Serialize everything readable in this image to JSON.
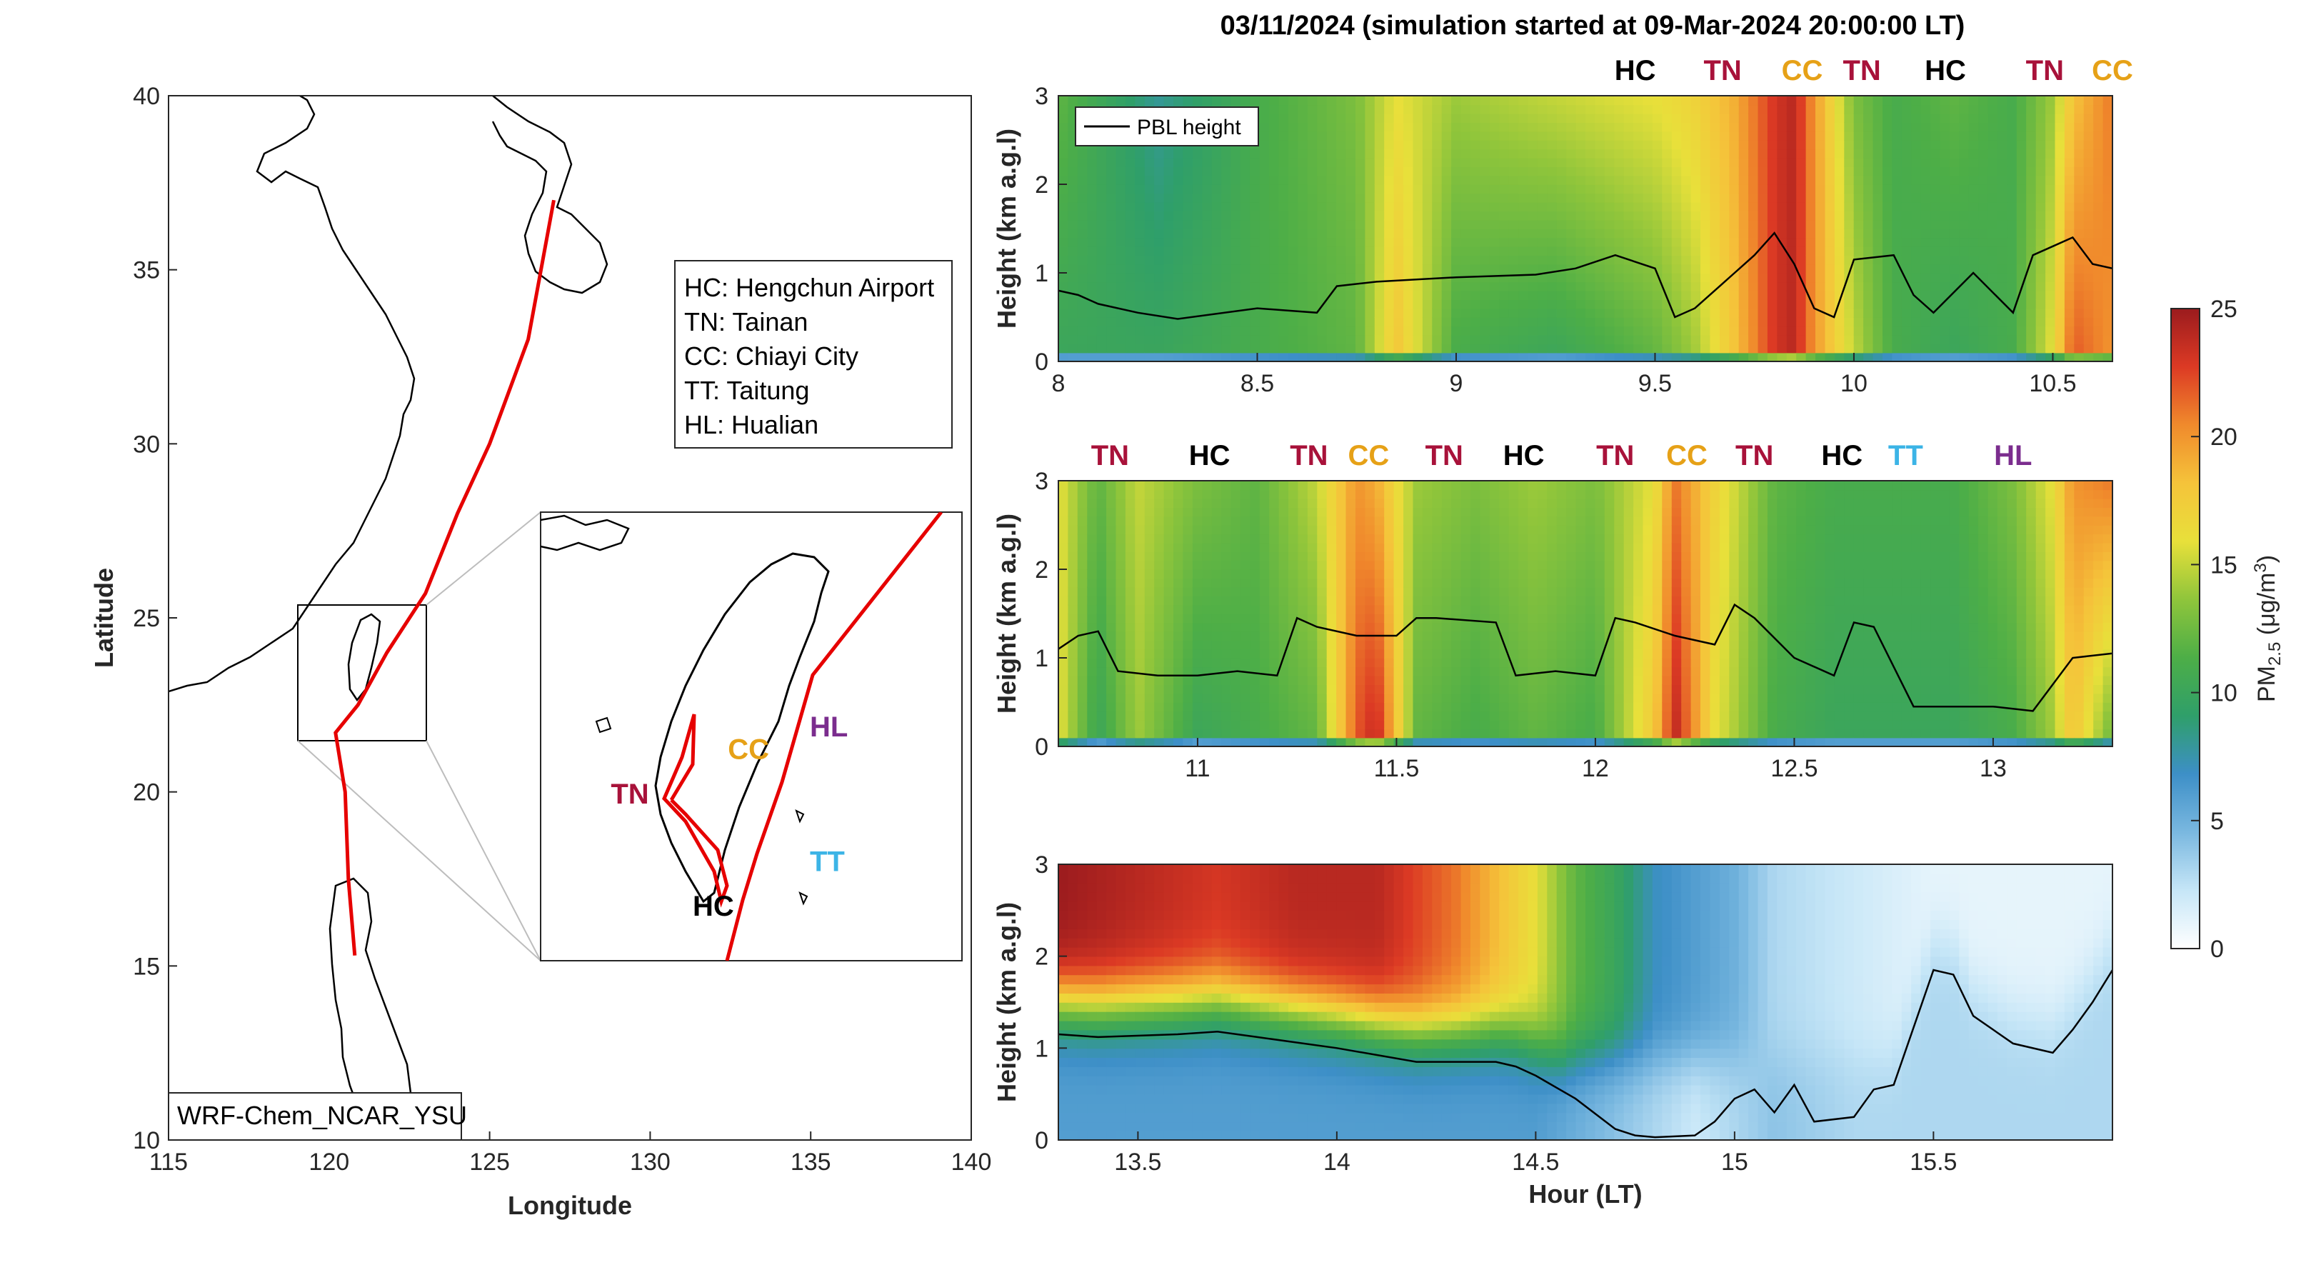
{
  "figure": {
    "title": "03/11/2024 (simulation started at 09-Mar-2024 20:00:00 LT)",
    "model_label": "WRF-Chem_NCAR_YSU"
  },
  "site_colors": {
    "HC": "#000000",
    "TN": "#a8123a",
    "CC": "#e6a117",
    "TT": "#3cb4e6",
    "HL": "#7b2d8e"
  },
  "map": {
    "xlabel": "Longitude",
    "ylabel": "Latitude",
    "xlim": [
      115,
      140
    ],
    "ylim": [
      10,
      40
    ],
    "xticks": [
      "115",
      "120",
      "125",
      "130",
      "135",
      "140"
    ],
    "yticks": [
      "10",
      "15",
      "20",
      "25",
      "30",
      "35",
      "40"
    ],
    "legend": [
      "HC: Hengchun Airport",
      "TN: Tainan",
      "CC: Chiayi City",
      "TT: Taitung",
      "HL: Hualian"
    ],
    "inset_site_labels": [
      {
        "code": "CC",
        "lon": 121.0,
        "lat": 23.3
      },
      {
        "code": "HL",
        "lon": 121.7,
        "lat": 23.5
      },
      {
        "code": "TN",
        "lon": 120.0,
        "lat": 22.9
      },
      {
        "code": "TT",
        "lon": 121.7,
        "lat": 22.3
      },
      {
        "code": "HC",
        "lon": 120.7,
        "lat": 21.9
      }
    ],
    "flight_track": [
      [
        127.0,
        37.0
      ],
      [
        126.2,
        33.0
      ],
      [
        125.0,
        30.0
      ],
      [
        124.0,
        28.0
      ],
      [
        123.0,
        25.7
      ],
      [
        121.8,
        24.0
      ],
      [
        120.9,
        22.5
      ],
      [
        120.2,
        21.7
      ],
      [
        120.5,
        20.0
      ],
      [
        120.6,
        17.5
      ],
      [
        120.8,
        15.3
      ]
    ]
  },
  "colorbar": {
    "label": "PM2.5 (μg/m3)",
    "ticks": [
      "0",
      "5",
      "10",
      "15",
      "20",
      "25"
    ],
    "range": [
      0,
      25
    ],
    "colors": [
      "#ffffff",
      "#c6e6f7",
      "#7ab8e0",
      "#3d8fc7",
      "#2f9f6a",
      "#4dae47",
      "#8fc53b",
      "#e8e03a",
      "#f5c33a",
      "#f08a2c",
      "#dc3a24",
      "#9b1b1e"
    ]
  },
  "chart_data": [
    {
      "type": "heatmap",
      "title": "",
      "xlabel": "",
      "ylabel": "Height (km a.g.l)",
      "xlim": [
        8,
        10.65
      ],
      "ylim": [
        0,
        3
      ],
      "xticks": [
        "8",
        "8.5",
        "9",
        "9.5",
        "10",
        "10.5"
      ],
      "yticks": [
        "0",
        "1",
        "2",
        "3"
      ],
      "legend": "PBL height",
      "site_labels": [
        {
          "code": "HC",
          "hour": 9.45
        },
        {
          "code": "TN",
          "hour": 9.67
        },
        {
          "code": "CC",
          "hour": 9.87
        },
        {
          "code": "TN",
          "hour": 10.02
        },
        {
          "code": "HC",
          "hour": 10.23
        },
        {
          "code": "TN",
          "hour": 10.48
        },
        {
          "code": "CC",
          "hour": 10.65
        }
      ],
      "pbl_height": {
        "hour": [
          8.0,
          8.05,
          8.1,
          8.2,
          8.3,
          8.5,
          8.65,
          8.7,
          8.8,
          9.0,
          9.2,
          9.3,
          9.4,
          9.5,
          9.55,
          9.6,
          9.7,
          9.75,
          9.8,
          9.85,
          9.9,
          9.95,
          10.0,
          10.1,
          10.15,
          10.2,
          10.3,
          10.4,
          10.45,
          10.5,
          10.55,
          10.6,
          10.65
        ],
        "value": [
          0.8,
          0.75,
          0.65,
          0.55,
          0.48,
          0.6,
          0.55,
          0.85,
          0.9,
          0.95,
          0.98,
          1.05,
          1.2,
          1.05,
          0.5,
          0.6,
          1.0,
          1.2,
          1.45,
          1.1,
          0.6,
          0.5,
          1.15,
          1.2,
          0.75,
          0.55,
          1.0,
          0.55,
          1.2,
          1.3,
          1.4,
          1.1,
          1.05
        ]
      },
      "pm25_profile": {
        "hour": [
          8.0,
          8.25,
          8.5,
          8.75,
          8.85,
          9.0,
          9.25,
          9.5,
          9.6,
          9.7,
          9.8,
          9.85,
          9.9,
          10.0,
          10.1,
          10.25,
          10.4,
          10.5,
          10.55,
          10.65
        ],
        "surface": [
          10,
          10,
          11,
          12,
          18,
          11,
          10,
          12,
          14,
          18,
          23,
          24,
          20,
          15,
          11,
          10,
          11,
          16,
          22,
          20
        ],
        "aloft": [
          12,
          8,
          11,
          13,
          16,
          14,
          15,
          16,
          17,
          19,
          23,
          24,
          20,
          13,
          11,
          12,
          11,
          14,
          18,
          21
        ]
      }
    },
    {
      "type": "heatmap",
      "title": "",
      "xlabel": "",
      "ylabel": "Height (km a.g.l)",
      "xlim": [
        10.65,
        13.3
      ],
      "ylim": [
        0,
        3
      ],
      "xticks": [
        "11",
        "11.5",
        "12",
        "12.5",
        "13"
      ],
      "yticks": [
        "0",
        "1",
        "2",
        "3"
      ],
      "site_labels": [
        {
          "code": "TN",
          "hour": 10.78
        },
        {
          "code": "HC",
          "hour": 11.03
        },
        {
          "code": "TN",
          "hour": 11.28
        },
        {
          "code": "CC",
          "hour": 11.43
        },
        {
          "code": "TN",
          "hour": 11.62
        },
        {
          "code": "HC",
          "hour": 11.82
        },
        {
          "code": "TN",
          "hour": 12.05
        },
        {
          "code": "CC",
          "hour": 12.23
        },
        {
          "code": "TN",
          "hour": 12.4
        },
        {
          "code": "HC",
          "hour": 12.62
        },
        {
          "code": "TT",
          "hour": 12.78
        },
        {
          "code": "HL",
          "hour": 13.05
        }
      ],
      "pbl_height": {
        "hour": [
          10.65,
          10.7,
          10.75,
          10.8,
          10.9,
          11.0,
          11.1,
          11.2,
          11.25,
          11.3,
          11.4,
          11.5,
          11.55,
          11.6,
          11.75,
          11.8,
          11.9,
          12.0,
          12.05,
          12.1,
          12.2,
          12.3,
          12.35,
          12.4,
          12.5,
          12.6,
          12.65,
          12.7,
          12.8,
          12.9,
          13.0,
          13.1,
          13.2,
          13.3
        ],
        "value": [
          1.1,
          1.25,
          1.3,
          0.85,
          0.8,
          0.8,
          0.85,
          0.8,
          1.45,
          1.35,
          1.25,
          1.25,
          1.45,
          1.45,
          1.4,
          0.8,
          0.85,
          0.8,
          1.45,
          1.4,
          1.25,
          1.15,
          1.6,
          1.45,
          1.0,
          0.8,
          1.4,
          1.35,
          0.45,
          0.45,
          0.45,
          0.4,
          1.0,
          1.05
        ]
      },
      "pm25_profile": {
        "hour": [
          10.65,
          10.75,
          10.85,
          11.0,
          11.15,
          11.3,
          11.4,
          11.45,
          11.55,
          11.7,
          11.85,
          12.0,
          12.15,
          12.2,
          12.3,
          12.45,
          12.6,
          12.75,
          12.9,
          13.05,
          13.15,
          13.2,
          13.3
        ],
        "surface": [
          16,
          10,
          14,
          10,
          11,
          12,
          22,
          24,
          12,
          11,
          12,
          11,
          18,
          24,
          16,
          11,
          10,
          10,
          10,
          11,
          14,
          18,
          12
        ],
        "aloft": [
          16,
          12,
          15,
          13,
          12,
          15,
          20,
          19,
          14,
          13,
          14,
          13,
          16,
          21,
          17,
          12,
          11,
          11,
          11,
          13,
          16,
          20,
          21
        ]
      }
    },
    {
      "type": "heatmap",
      "title": "",
      "xlabel": "Hour (LT)",
      "ylabel": "Height (km a.g.l)",
      "xlim": [
        13.3,
        15.95
      ],
      "ylim": [
        0,
        3
      ],
      "xticks": [
        "13.5",
        "14",
        "14.5",
        "15",
        "15.5"
      ],
      "yticks": [
        "0",
        "1",
        "2",
        "3"
      ],
      "site_labels": [],
      "pbl_height": {
        "hour": [
          13.3,
          13.4,
          13.6,
          13.7,
          13.8,
          14.0,
          14.2,
          14.4,
          14.45,
          14.5,
          14.6,
          14.7,
          14.75,
          14.8,
          14.9,
          14.95,
          15.0,
          15.05,
          15.1,
          15.15,
          15.2,
          15.3,
          15.35,
          15.4,
          15.5,
          15.55,
          15.6,
          15.7,
          15.8,
          15.85,
          15.9,
          15.95
        ],
        "value": [
          1.15,
          1.12,
          1.15,
          1.18,
          1.12,
          1.0,
          0.85,
          0.85,
          0.8,
          0.7,
          0.45,
          0.12,
          0.05,
          0.03,
          0.05,
          0.2,
          0.45,
          0.55,
          0.3,
          0.6,
          0.2,
          0.25,
          0.55,
          0.6,
          1.85,
          1.8,
          1.35,
          1.05,
          0.95,
          1.2,
          1.5,
          1.85
        ]
      },
      "pm25_profile": {
        "hour": [
          13.3,
          13.5,
          13.7,
          13.9,
          14.1,
          14.3,
          14.5,
          14.6,
          14.7,
          14.8,
          14.9,
          15.0,
          15.1,
          15.3,
          15.5,
          15.7,
          15.95
        ],
        "surface": [
          6,
          6,
          6,
          6,
          6,
          6,
          6,
          5,
          4,
          3,
          2,
          3,
          4,
          3,
          3,
          3,
          3
        ],
        "aloft": [
          25,
          24,
          23,
          24,
          24,
          21,
          16,
          12,
          10,
          7,
          6,
          5,
          3,
          2,
          1,
          1,
          1
        ]
      }
    }
  ]
}
